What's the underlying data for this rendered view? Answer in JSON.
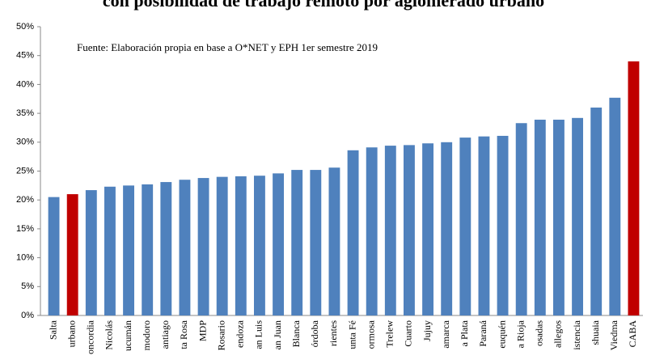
{
  "chart_data": {
    "type": "bar",
    "title": "con posibilidad de trabajo remoto por aglomerado urbano",
    "annotation": "Fuente: Elaboración propia en base a O*NET y EPH 1er semestre 2019",
    "categories": [
      "Salta",
      "urbano",
      "oncordia",
      "Nicolás",
      "ucumán",
      "modoro",
      "antiago",
      "ta Rosa",
      "MDP",
      "Rosario",
      "endoza",
      "an Luis",
      "an Juan",
      "Blanca",
      "órdoba",
      "rientes",
      "unta Fé",
      "ormosa",
      "Trelew",
      "Cuarto",
      "Jujuy",
      "amarca",
      "a Plata",
      "Paraná",
      "euquén",
      "a Rioja",
      "osadas",
      "allegos",
      "istencia",
      "shuaia",
      "Viedma",
      "CABA"
    ],
    "values": [
      20.5,
      21,
      21.7,
      22.3,
      22.5,
      22.7,
      23.1,
      23.5,
      23.8,
      24,
      24.1,
      24.2,
      24.6,
      25.2,
      25.2,
      25.6,
      28.6,
      29.1,
      29.4,
      29.5,
      29.8,
      30,
      30.8,
      31,
      31.1,
      33.3,
      33.9,
      33.9,
      34.2,
      36,
      37.7,
      44
    ],
    "colors": [
      "#4f81bd",
      "#c00000",
      "#4f81bd",
      "#4f81bd",
      "#4f81bd",
      "#4f81bd",
      "#4f81bd",
      "#4f81bd",
      "#4f81bd",
      "#4f81bd",
      "#4f81bd",
      "#4f81bd",
      "#4f81bd",
      "#4f81bd",
      "#4f81bd",
      "#4f81bd",
      "#4f81bd",
      "#4f81bd",
      "#4f81bd",
      "#4f81bd",
      "#4f81bd",
      "#4f81bd",
      "#4f81bd",
      "#4f81bd",
      "#4f81bd",
      "#4f81bd",
      "#4f81bd",
      "#4f81bd",
      "#4f81bd",
      "#4f81bd",
      "#4f81bd",
      "#c00000"
    ],
    "ylim": [
      0,
      50
    ],
    "yticks": [
      {
        "value": 0,
        "label": "0%"
      },
      {
        "value": 5,
        "label": "5%"
      },
      {
        "value": 10,
        "label": "10%"
      },
      {
        "value": 15,
        "label": "15%"
      },
      {
        "value": 20,
        "label": "20%"
      },
      {
        "value": 25,
        "label": "25%"
      },
      {
        "value": 30,
        "label": "30%"
      },
      {
        "value": 35,
        "label": "35%"
      },
      {
        "value": 40,
        "label": "40%"
      },
      {
        "value": 45,
        "label": "45%"
      },
      {
        "value": 50,
        "label": "50%"
      }
    ],
    "grid": false
  }
}
